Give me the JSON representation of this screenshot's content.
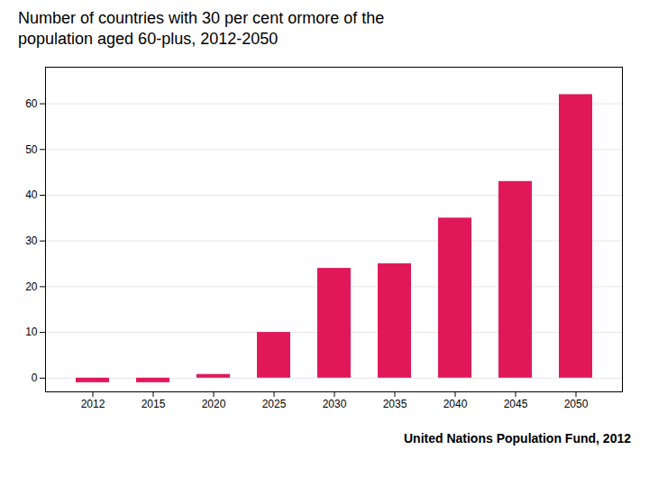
{
  "chart_data": {
    "type": "bar",
    "title": "Number of countries with 30 per cent ormore of the",
    "subtitle": "population aged 60-plus, 2012-2050",
    "annotations": [
      "United Nations Population Fund, 2012"
    ],
    "categories": [
      "2012",
      "2015",
      "2020",
      "2025",
      "2030",
      "2035",
      "2040",
      "2045",
      "2050"
    ],
    "values": [
      -1,
      -1,
      0.8,
      10,
      24,
      25,
      35,
      43,
      62
    ],
    "color": "#e0185a",
    "ylim": [
      -3,
      68
    ],
    "yticks": [
      0,
      10,
      20,
      30,
      40,
      50,
      60
    ],
    "grid": true
  }
}
